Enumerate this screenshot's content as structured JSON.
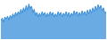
{
  "chart_data": {
    "type": "area",
    "color": "#3a8fd9",
    "tick_labels": false,
    "ylim": [
      0,
      100
    ],
    "categories": [
      null,
      null,
      null,
      null,
      null,
      null,
      null,
      null,
      null,
      null,
      null,
      null,
      null,
      null,
      null,
      null,
      null,
      null,
      null,
      null,
      null,
      null,
      null,
      null,
      null,
      null,
      null,
      null,
      null,
      null,
      null,
      null,
      null,
      null,
      null,
      null,
      null,
      null,
      null,
      null,
      null,
      null,
      null,
      null,
      null,
      null,
      null,
      null,
      null,
      null,
      null,
      null,
      null,
      null,
      null,
      null,
      null,
      null,
      null,
      null,
      null,
      null,
      null,
      null,
      null,
      null,
      null,
      null,
      null,
      null,
      null,
      null,
      null,
      null,
      null,
      null,
      null,
      null,
      null,
      null
    ],
    "values": [
      48,
      55,
      44,
      58,
      52,
      60,
      50,
      62,
      55,
      66,
      58,
      70,
      62,
      72,
      65,
      78,
      68,
      82,
      72,
      88,
      76,
      92,
      80,
      86,
      70,
      78,
      62,
      70,
      58,
      68,
      60,
      72,
      62,
      70,
      58,
      68,
      60,
      72,
      62,
      70,
      58,
      66,
      60,
      72,
      62,
      70,
      58,
      68,
      62,
      72,
      60,
      70,
      58,
      68,
      62,
      74,
      64,
      72,
      60,
      70,
      62,
      74,
      64,
      72,
      62,
      76,
      66,
      78,
      68,
      82,
      72,
      86,
      76,
      90,
      80,
      88,
      74,
      82,
      68,
      72
    ]
  }
}
